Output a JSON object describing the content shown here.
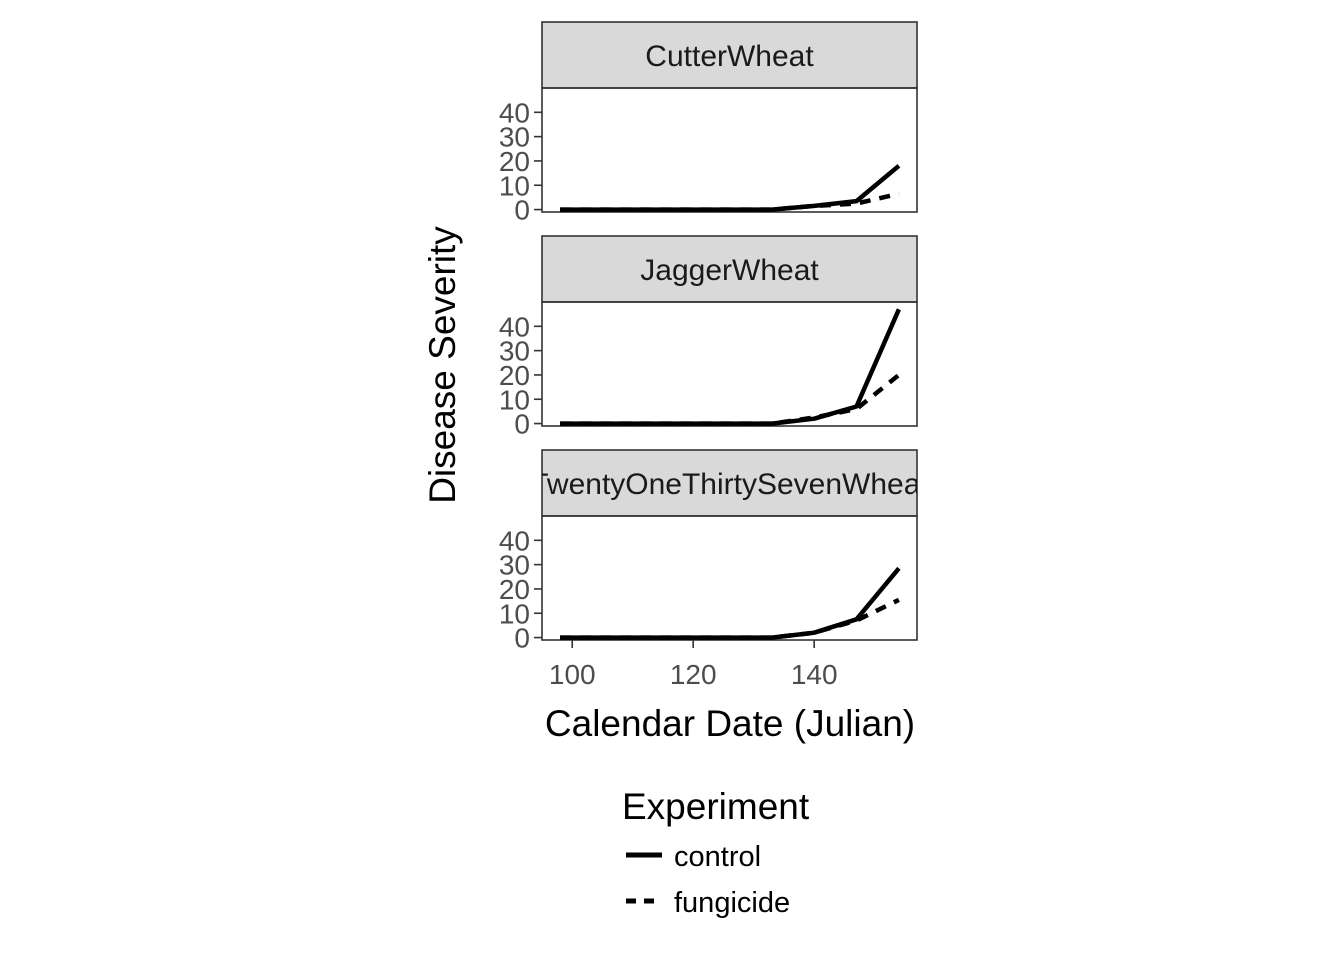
{
  "chart_data": {
    "type": "line",
    "xlabel": "Calendar Date (Julian)",
    "ylabel": "Disease Severity",
    "xlim": [
      95,
      157
    ],
    "ylim": [
      -1,
      50
    ],
    "x_ticks": [
      100,
      120,
      140
    ],
    "y_ticks": [
      0,
      10,
      20,
      30,
      40
    ],
    "grid": false,
    "legend": {
      "title": "Experiment",
      "position": "bottom",
      "entries": [
        {
          "label": "control",
          "linetype": "solid"
        },
        {
          "label": "fungicide",
          "linetype": "dashed"
        }
      ]
    },
    "panels": [
      {
        "strip": "CutterWheat",
        "series": [
          {
            "name": "control",
            "x": [
              98,
              105,
              112,
              119,
              126,
              133,
              140,
              147,
              154
            ],
            "y": [
              0,
              0,
              0,
              0,
              0,
              0,
              1.5,
              3.5,
              18
            ]
          },
          {
            "name": "fungicide",
            "x": [
              98,
              105,
              112,
              119,
              126,
              133,
              140,
              147,
              154
            ],
            "y": [
              0,
              0,
              0,
              0,
              0,
              0,
              1.5,
              2.5,
              6.5
            ]
          }
        ]
      },
      {
        "strip": "JaggerWheat",
        "series": [
          {
            "name": "control",
            "x": [
              98,
              105,
              112,
              119,
              126,
              133,
              140,
              147,
              154
            ],
            "y": [
              0,
              0,
              0,
              0,
              0,
              0,
              2,
              7,
              47
            ]
          },
          {
            "name": "fungicide",
            "x": [
              98,
              105,
              112,
              119,
              126,
              133,
              140,
              147,
              154
            ],
            "y": [
              0,
              0,
              0,
              0,
              0,
              0,
              2.5,
              6,
              20
            ]
          }
        ]
      },
      {
        "strip": "TwentyOneThirtySevenWheat",
        "series": [
          {
            "name": "control",
            "x": [
              98,
              105,
              112,
              119,
              126,
              133,
              140,
              147,
              154
            ],
            "y": [
              0,
              0,
              0,
              0,
              0,
              0,
              2,
              7.5,
              28.5
            ]
          },
          {
            "name": "fungicide",
            "x": [
              98,
              105,
              112,
              119,
              126,
              133,
              140,
              147,
              154
            ],
            "y": [
              0,
              0,
              0,
              0,
              0,
              0,
              2,
              7,
              15.5
            ]
          }
        ]
      }
    ]
  },
  "colors": {
    "strip_fill": "#d9d9d9",
    "strip_border": "#333333",
    "panel_border": "#333333",
    "line": "#000000",
    "tick_label": "#4d4d4d"
  }
}
